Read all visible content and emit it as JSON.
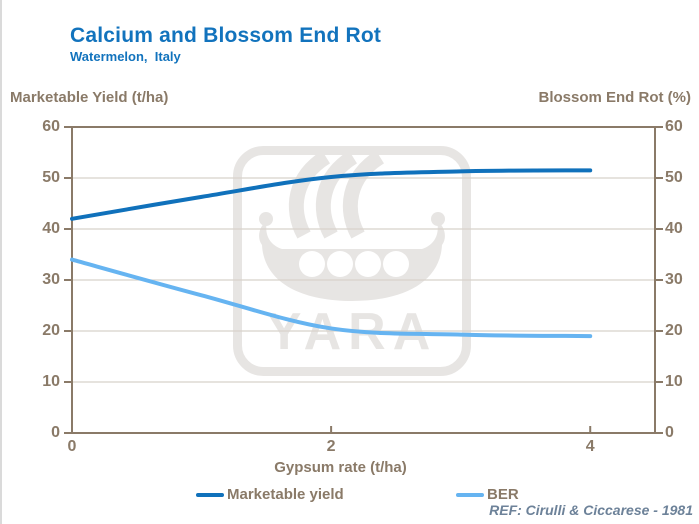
{
  "header": {
    "title": "Calcium and Blossom End Rot",
    "subtitle": "Watermelon,  Italy"
  },
  "chart_data": {
    "type": "line",
    "title": "Calcium and Blossom End Rot",
    "subtitle": "Watermelon,  Italy",
    "x": [
      0,
      1,
      2,
      3,
      4
    ],
    "series": [
      {
        "name": "Marketable yield",
        "axis": "left",
        "color": "#1071bb",
        "values": [
          42,
          46.3,
          50.2,
          51.3,
          51.5
        ]
      },
      {
        "name": "BER",
        "axis": "right",
        "color": "#66b4f1",
        "values": [
          34,
          27,
          20.5,
          19.3,
          19
        ]
      }
    ],
    "xlabel": "Gypsum rate (t/ha)",
    "ylabel_left": "Marketable Yield (t/ha)",
    "ylabel_right": "Blossom End Rot (%)",
    "xlim": [
      0,
      4.5
    ],
    "ylim": [
      0,
      60
    ],
    "x_ticks": [
      0,
      2,
      4
    ],
    "y_ticks": [
      0,
      10,
      20,
      30,
      40,
      50,
      60
    ],
    "grid": "horizontal",
    "legend_position": "bottom"
  },
  "footer": {
    "reference": "REF: Cirulli & Ciccarese - 1981"
  },
  "watermark": {
    "text": "YARA"
  },
  "colors": {
    "title": "#1273bd",
    "axis_text": "#8a7a68",
    "frame": "#8a7a68",
    "grid": "#d8d2ca",
    "yield_line": "#1071bb",
    "ber_line": "#66b4f1",
    "reference": "#6d8299",
    "watermark": "#e7e5e3"
  }
}
